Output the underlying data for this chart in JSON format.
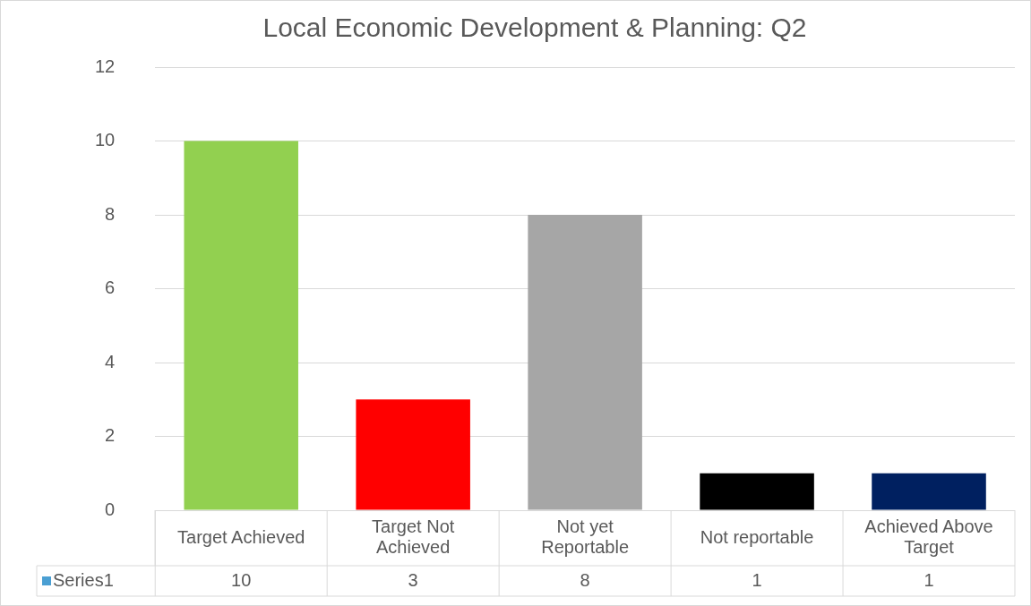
{
  "chart_data": {
    "type": "bar",
    "title": "Local Economic Development & Planning: Q2",
    "categories": [
      "Target Achieved",
      "Target Not Achieved",
      "Not yet Reportable",
      "Not reportable",
      "Achieved Above Target"
    ],
    "series": [
      {
        "name": "Series1",
        "color": "#4a9fd3",
        "colors": [
          "#92d050",
          "#ff0000",
          "#a6a6a6",
          "#000000",
          "#002060"
        ],
        "values": [
          10,
          3,
          8,
          1,
          1
        ]
      }
    ],
    "ylim": [
      0,
      12
    ],
    "yticks": [
      0,
      2,
      4,
      6,
      8,
      10,
      12
    ],
    "grid": "y",
    "data_labels": true
  }
}
